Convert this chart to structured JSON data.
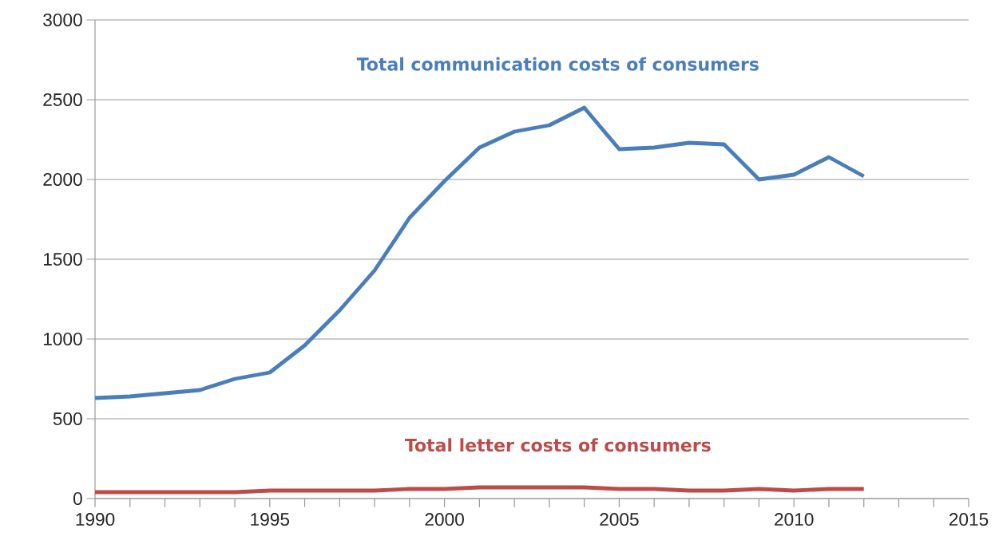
{
  "chart_data": {
    "type": "line",
    "x": [
      1990,
      1991,
      1992,
      1993,
      1994,
      1995,
      1996,
      1997,
      1998,
      1999,
      2000,
      2001,
      2002,
      2003,
      2004,
      2005,
      2006,
      2007,
      2008,
      2009,
      2010,
      2011,
      2012
    ],
    "series": [
      {
        "name": "Total communication costs of consumers",
        "color": "#4a7ebb",
        "values": [
          630,
          640,
          660,
          680,
          750,
          790,
          960,
          1180,
          1430,
          1760,
          1990,
          2200,
          2300,
          2340,
          2450,
          2190,
          2200,
          2230,
          2220,
          2000,
          2030,
          2140,
          2020
        ]
      },
      {
        "name": "Total letter costs of consumers",
        "color": "#be4b48",
        "values": [
          40,
          40,
          40,
          40,
          40,
          50,
          50,
          50,
          50,
          60,
          60,
          70,
          70,
          70,
          70,
          60,
          60,
          50,
          50,
          60,
          50,
          60,
          60
        ]
      }
    ],
    "xlim": [
      1990,
      2015
    ],
    "xticks": [
      1990,
      1995,
      2000,
      2005,
      2010,
      2015
    ],
    "ylim": [
      0,
      3000
    ],
    "yticks": [
      0,
      500,
      1000,
      1500,
      2000,
      2500,
      3000
    ],
    "grid": "y",
    "legend": false,
    "marker": "none",
    "line_style": "solid"
  }
}
